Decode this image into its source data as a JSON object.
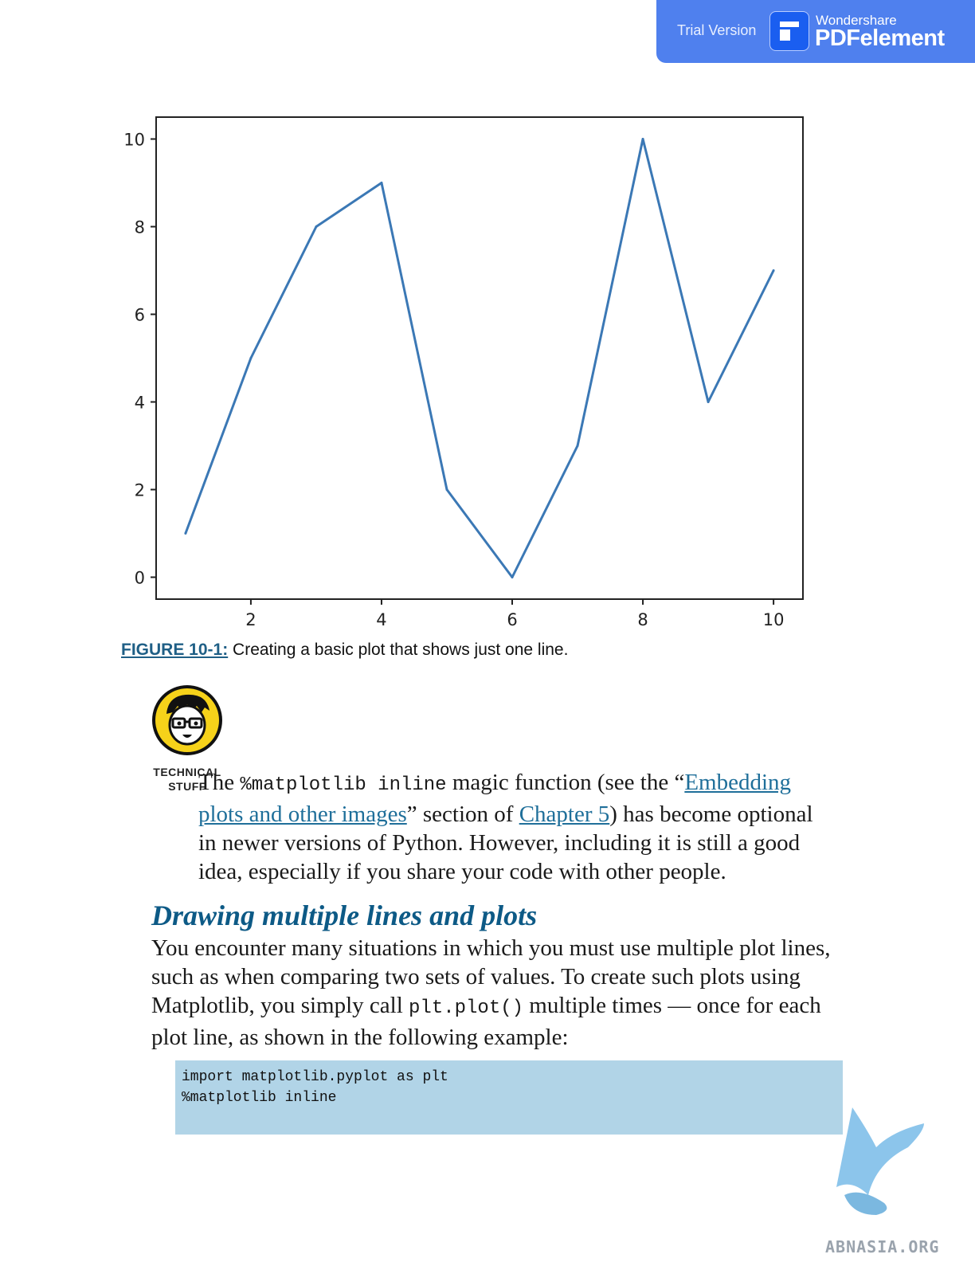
{
  "badge": {
    "trial": "Trial Version",
    "brand": "Wondershare",
    "product": "PDFelement"
  },
  "chart_data": {
    "type": "line",
    "x": [
      1,
      2,
      3,
      4,
      5,
      6,
      7,
      8,
      9,
      10
    ],
    "series": [
      {
        "values": [
          1,
          5,
          8,
          9,
          2,
          0,
          3,
          10,
          4,
          7
        ],
        "color": "#3b78b5"
      }
    ],
    "xticks": [
      "2",
      "4",
      "6",
      "8",
      "10"
    ],
    "yticks": [
      "0",
      "2",
      "4",
      "6",
      "8",
      "10"
    ],
    "xlim": [
      0.55,
      10.45
    ],
    "ylim": [
      -0.5,
      10.5
    ],
    "grid": false,
    "title": "",
    "xlabel": "",
    "ylabel": ""
  },
  "caption": {
    "label": "FIGURE 10-1:",
    "text": " Creating a basic plot that shows just one line."
  },
  "tech": {
    "line1": "TECHNICAL",
    "line2": "STUFF"
  },
  "tip": {
    "t1": "The ",
    "code1": "%matplotlib inline",
    "t2": " magic function (see the “",
    "link1": "Embedding plots and other images",
    "t3": "” section of ",
    "link2": "Chapter 5",
    "t4": ") has become optional in newer versions of Python. However, including it is still a good idea, especially if you share your code with other people."
  },
  "heading": "Drawing multiple lines and plots",
  "para": {
    "t1": "You encounter many situations in which you must use multiple plot lines, such as when comparing two sets of values. To create such plots using Matplotlib, you simply call ",
    "code": "plt.plot()",
    "t2": " multiple times — once for each plot line, as shown in the following example:"
  },
  "code": {
    "line1": "import matplotlib.pyplot as plt",
    "line2": "%matplotlib inline"
  },
  "watermark": "ABNASIA.ORG"
}
